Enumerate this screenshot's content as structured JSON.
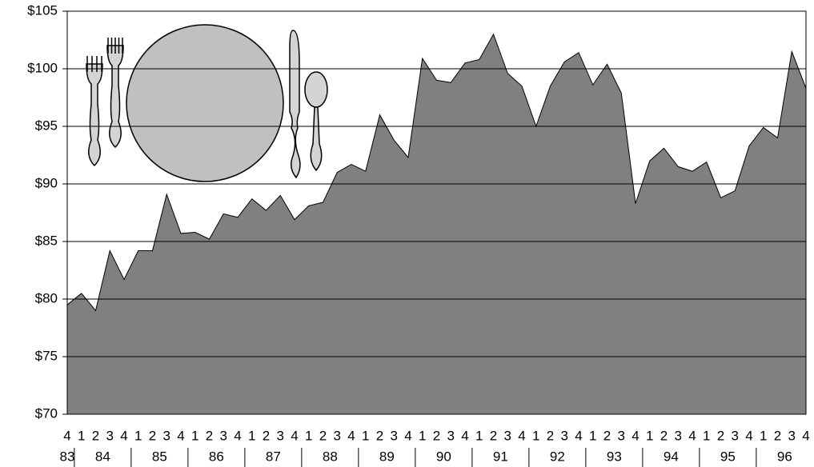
{
  "chart_data": {
    "type": "area",
    "categories": [
      "4",
      "1",
      "2",
      "3",
      "4",
      "1",
      "2",
      "3",
      "4",
      "1",
      "2",
      "3",
      "4",
      "1",
      "2",
      "3",
      "4",
      "1",
      "2",
      "3",
      "4",
      "1",
      "2",
      "3",
      "4",
      "1",
      "2",
      "3",
      "4",
      "1",
      "2",
      "3",
      "4",
      "1",
      "2",
      "3",
      "4",
      "1",
      "2",
      "3",
      "4",
      "1",
      "2",
      "3",
      "4",
      "1",
      "2",
      "3",
      "4",
      "1",
      "2",
      "3",
      "4"
    ],
    "category_groups": [
      "83",
      "84",
      "85",
      "86",
      "87",
      "88",
      "89",
      "90",
      "91",
      "92",
      "93",
      "94",
      "95",
      "96"
    ],
    "values": [
      79.5,
      80.5,
      79.0,
      84.2,
      81.7,
      84.2,
      84.2,
      89.1,
      85.7,
      85.8,
      85.2,
      87.4,
      87.1,
      88.7,
      87.7,
      89.0,
      86.9,
      88.1,
      88.4,
      91.0,
      91.7,
      91.1,
      96.0,
      93.8,
      92.3,
      100.9,
      99.0,
      98.8,
      100.5,
      100.8,
      103.0,
      99.6,
      98.5,
      95.0,
      98.5,
      100.6,
      101.4,
      98.6,
      100.4,
      97.9,
      88.3,
      92.0,
      93.1,
      91.5,
      91.1,
      91.9,
      88.8,
      89.4,
      93.3,
      94.9,
      94.0,
      101.5,
      98.3
    ],
    "color": "#808080",
    "ylim": [
      70,
      105
    ],
    "yticks": [
      {
        "value": 70,
        "label": "$70"
      },
      {
        "value": 75,
        "label": "$75"
      },
      {
        "value": 80,
        "label": "$80"
      },
      {
        "value": 85,
        "label": "$85"
      },
      {
        "value": 90,
        "label": "$90"
      },
      {
        "value": 95,
        "label": "$95"
      },
      {
        "value": 100,
        "label": "$100"
      },
      {
        "value": 105,
        "label": "$105"
      }
    ],
    "grid": true
  }
}
